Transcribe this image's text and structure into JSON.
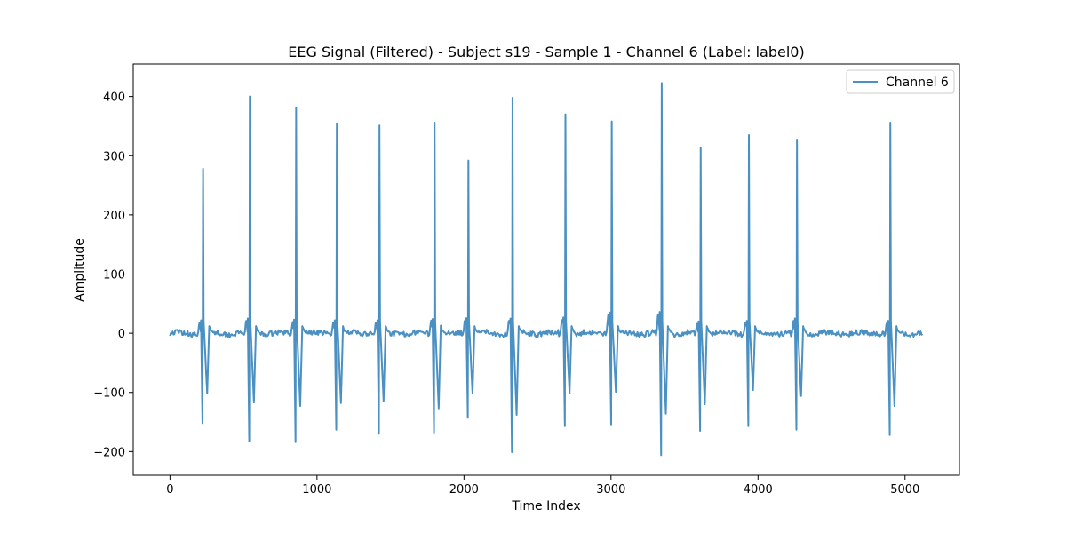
{
  "chart_data": {
    "type": "line",
    "title": "EEG Signal (Filtered) - Subject s19 - Sample 1 - Channel 6 (Label: label0)",
    "xlabel": "Time Index",
    "ylabel": "Amplitude",
    "xlim": [
      -250,
      5370
    ],
    "ylim": [
      -240,
      455
    ],
    "x_ticks": [
      {
        "value": 0,
        "label": "0"
      },
      {
        "value": 1000,
        "label": "1000"
      },
      {
        "value": 2000,
        "label": "2000"
      },
      {
        "value": 3000,
        "label": "3000"
      },
      {
        "value": 4000,
        "label": "4000"
      },
      {
        "value": 5000,
        "label": "5000"
      }
    ],
    "y_ticks": [
      {
        "value": -200,
        "label": "−200"
      },
      {
        "value": -100,
        "label": "−100"
      },
      {
        "value": 0,
        "label": "0"
      },
      {
        "value": 100,
        "label": "100"
      },
      {
        "value": 200,
        "label": "200"
      },
      {
        "value": 300,
        "label": "300"
      },
      {
        "value": 400,
        "label": "400"
      }
    ],
    "grid": false,
    "legend_position": "upper right",
    "series": [
      {
        "name": "Channel 6",
        "color": "#4a90c2",
        "x_range": [
          0,
          5119
        ],
        "spikes": [
          {
            "x": 225,
            "peak": 278,
            "min1": -152,
            "min2": -102,
            "pre": 22
          },
          {
            "x": 543,
            "peak": 400,
            "min1": -183,
            "min2": -117,
            "pre": 25
          },
          {
            "x": 858,
            "peak": 380,
            "min1": -184,
            "min2": -123,
            "pre": 23
          },
          {
            "x": 1135,
            "peak": 354,
            "min1": -163,
            "min2": -118,
            "pre": 22
          },
          {
            "x": 1425,
            "peak": 351,
            "min1": -170,
            "min2": -115,
            "pre": 22
          },
          {
            "x": 1800,
            "peak": 356,
            "min1": -168,
            "min2": -127,
            "pre": 24
          },
          {
            "x": 2030,
            "peak": 292,
            "min1": -143,
            "min2": -102,
            "pre": 25
          },
          {
            "x": 2330,
            "peak": 398,
            "min1": -201,
            "min2": -138,
            "pre": 25
          },
          {
            "x": 2690,
            "peak": 370,
            "min1": -157,
            "min2": -102,
            "pre": 26
          },
          {
            "x": 3005,
            "peak": 358,
            "min1": -154,
            "min2": -99,
            "pre": 35
          },
          {
            "x": 3345,
            "peak": 423,
            "min1": -206,
            "min2": -136,
            "pre": 36
          },
          {
            "x": 3610,
            "peak": 314,
            "min1": -165,
            "min2": -120,
            "pre": 20
          },
          {
            "x": 3938,
            "peak": 335,
            "min1": -157,
            "min2": -96,
            "pre": 21
          },
          {
            "x": 4265,
            "peak": 326,
            "min1": -163,
            "min2": -106,
            "pre": 25
          },
          {
            "x": 4900,
            "peak": 356,
            "min1": -172,
            "min2": -123,
            "pre": 21
          }
        ]
      }
    ]
  }
}
